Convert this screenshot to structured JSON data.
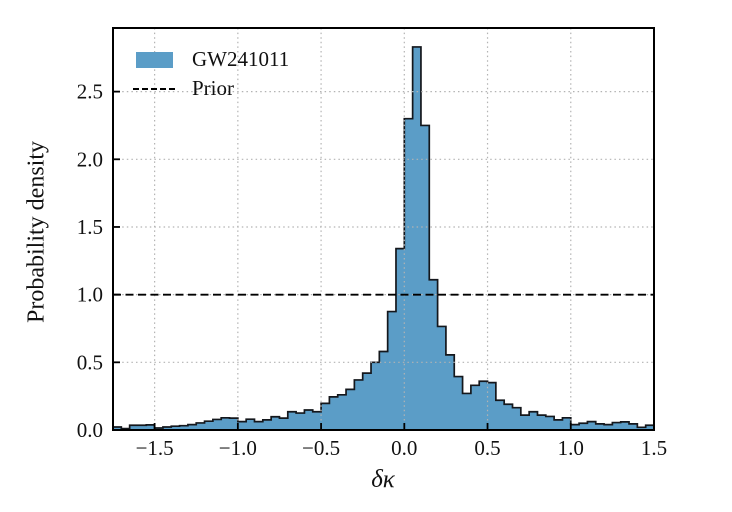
{
  "figure": {
    "ylabel": "Probability density",
    "xlabel": "δκ"
  },
  "legend": [
    {
      "label": "GW241011",
      "marker": "filled-patch",
      "color": "#5b9dc7"
    },
    {
      "label": "Prior",
      "marker": "dashed-line",
      "color": "#000000"
    }
  ],
  "chart_data": {
    "type": "bar",
    "subtype": "histogram-stepfilled",
    "title": "",
    "xlabel": "δκ",
    "ylabel": "Probability density",
    "xlim": [
      -1.75,
      1.5
    ],
    "ylim": [
      0,
      2.97
    ],
    "x_ticks": [
      -1.5,
      -1.0,
      -0.5,
      0.0,
      0.5,
      1.0,
      1.5
    ],
    "y_ticks": [
      0.0,
      0.5,
      1.0,
      1.5,
      2.0,
      2.5
    ],
    "grid": "dotted",
    "legend_position": "upper-left",
    "series": [
      {
        "name": "GW241011",
        "kind": "histogram",
        "bin_start": -1.75,
        "bin_width": 0.05,
        "densities": [
          0.022,
          0.01,
          0.035,
          0.035,
          0.038,
          0.015,
          0.022,
          0.028,
          0.032,
          0.04,
          0.052,
          0.065,
          0.078,
          0.09,
          0.088,
          0.062,
          0.08,
          0.062,
          0.075,
          0.098,
          0.088,
          0.135,
          0.125,
          0.148,
          0.135,
          0.197,
          0.245,
          0.26,
          0.3,
          0.37,
          0.42,
          0.5,
          0.58,
          0.875,
          1.34,
          2.3,
          2.83,
          2.25,
          1.11,
          0.765,
          0.555,
          0.395,
          0.27,
          0.33,
          0.36,
          0.35,
          0.22,
          0.19,
          0.165,
          0.11,
          0.135,
          0.11,
          0.1,
          0.075,
          0.09,
          0.04,
          0.05,
          0.062,
          0.045,
          0.04,
          0.055,
          0.06,
          0.045,
          0.02,
          0.035
        ]
      },
      {
        "name": "Prior",
        "kind": "constant-line",
        "value": 1.0
      }
    ],
    "colors": {
      "hist_fill": "#5b9dc7",
      "hist_edge": "#14171c",
      "prior_line": "#000000",
      "grid": "#b3b3b3",
      "axis": "#000000",
      "text": "#111111"
    }
  }
}
